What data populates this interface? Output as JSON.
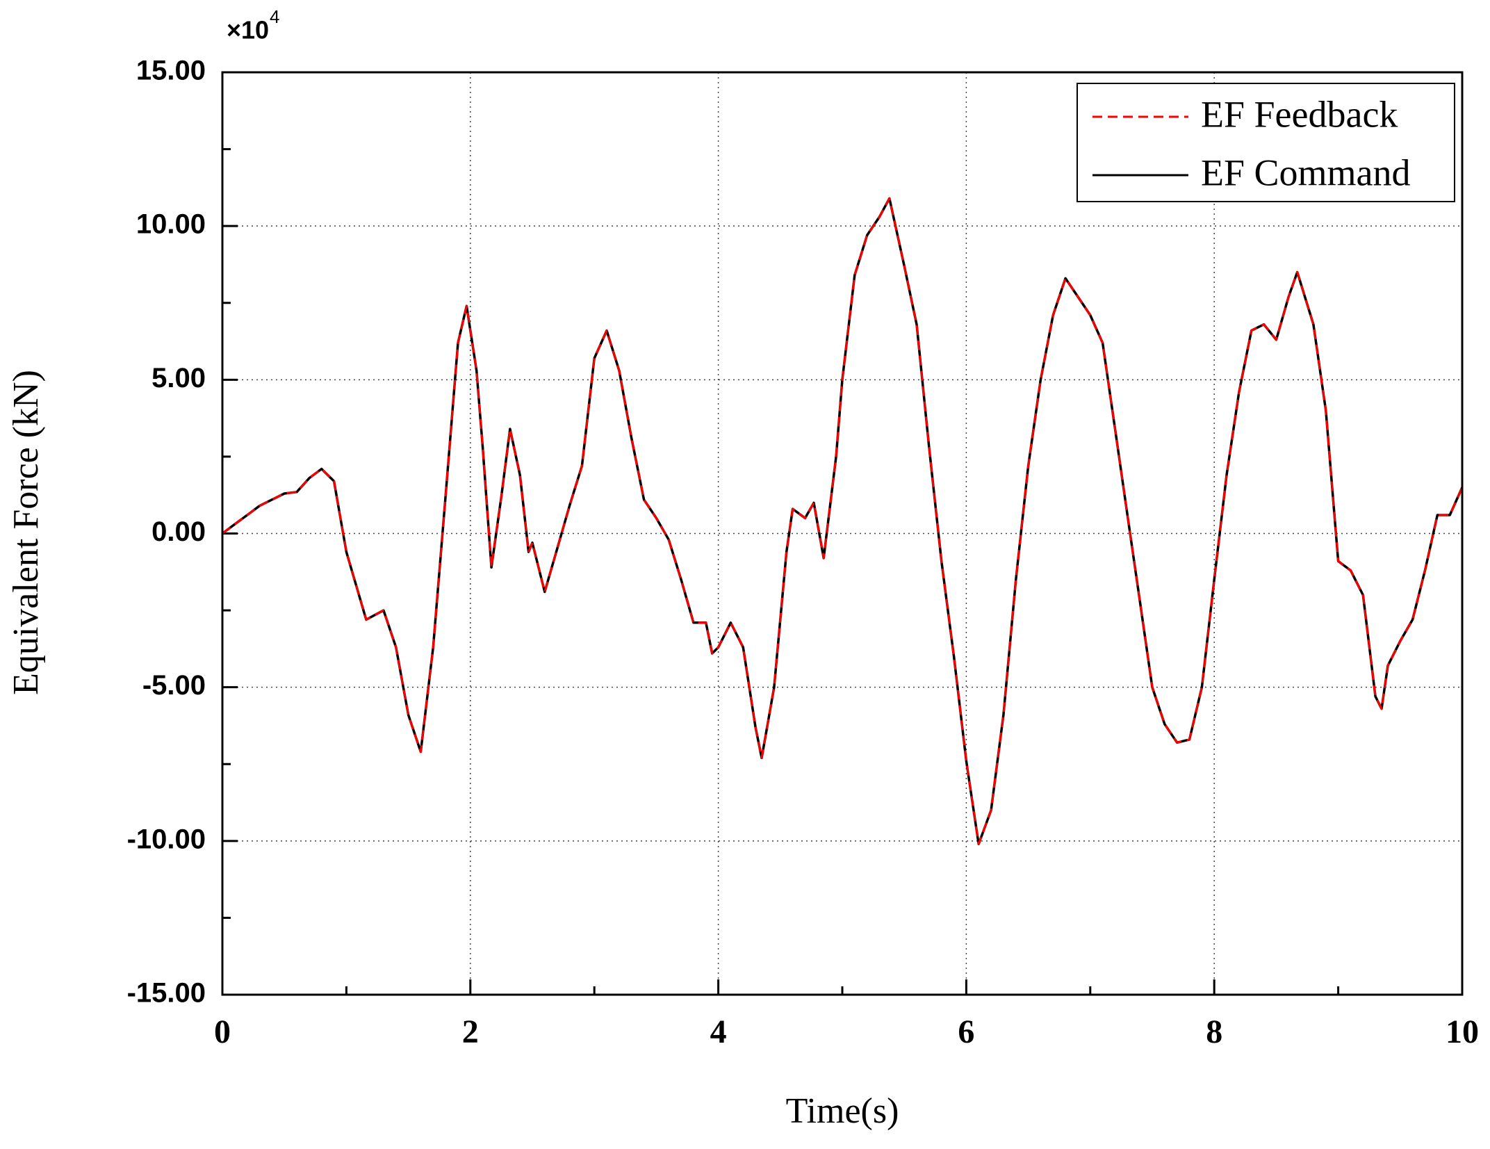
{
  "chart_data": {
    "type": "line",
    "xlabel": "Time(s)",
    "ylabel": "Equivalent Force (kN)",
    "y_scale": {
      "base": "×10",
      "exponent": "4"
    },
    "xlim": [
      0,
      10
    ],
    "xticks": [
      0,
      2,
      4,
      6,
      8,
      10
    ],
    "xminor": [
      1,
      3,
      5,
      7,
      9
    ],
    "ylim": [
      -15,
      15
    ],
    "yticks": [
      {
        "value": -15,
        "label": "-15.00"
      },
      {
        "value": -10,
        "label": "-10.00"
      },
      {
        "value": -5,
        "label": "-5.00"
      },
      {
        "value": 0,
        "label": "0.00"
      },
      {
        "value": 5,
        "label": "5.00"
      },
      {
        "value": 10,
        "label": "10.00"
      },
      {
        "value": 15,
        "label": "15.00"
      }
    ],
    "yminor": [
      -12.5,
      -7.5,
      -2.5,
      2.5,
      7.5,
      12.5
    ],
    "grid": true,
    "legend": "upper right",
    "x": [
      0,
      0.1,
      0.2,
      0.3,
      0.4,
      0.5,
      0.6,
      0.7,
      0.8,
      0.9,
      1.0,
      1.16,
      1.3,
      1.4,
      1.5,
      1.6,
      1.7,
      1.8,
      1.9,
      1.97,
      2.05,
      2.1,
      2.17,
      2.25,
      2.32,
      2.4,
      2.47,
      2.5,
      2.6,
      2.7,
      2.8,
      2.9,
      3.0,
      3.1,
      3.2,
      3.3,
      3.4,
      3.5,
      3.6,
      3.7,
      3.8,
      3.9,
      3.95,
      4.0,
      4.1,
      4.2,
      4.3,
      4.35,
      4.45,
      4.55,
      4.6,
      4.7,
      4.77,
      4.85,
      4.95,
      5.0,
      5.1,
      5.2,
      5.3,
      5.38,
      5.5,
      5.6,
      5.7,
      5.8,
      5.9,
      6.0,
      6.1,
      6.2,
      6.3,
      6.4,
      6.5,
      6.6,
      6.7,
      6.8,
      6.9,
      7.0,
      7.1,
      7.2,
      7.3,
      7.4,
      7.5,
      7.6,
      7.7,
      7.8,
      7.9,
      8.0,
      8.1,
      8.2,
      8.3,
      8.4,
      8.5,
      8.6,
      8.67,
      8.8,
      8.9,
      9.0,
      9.1,
      9.2,
      9.3,
      9.35,
      9.4,
      9.5,
      9.6,
      9.7,
      9.8,
      9.9,
      10
    ],
    "series": [
      {
        "name": "EF Feedback",
        "color": "#ff0000",
        "dash": true,
        "values": [
          0,
          0.3,
          0.6,
          0.9,
          1.1,
          1.3,
          1.35,
          1.8,
          2.1,
          1.7,
          -0.6,
          -2.8,
          -2.5,
          -3.7,
          -5.9,
          -7.1,
          -3.7,
          1.2,
          6.2,
          7.4,
          5.3,
          2.8,
          -1.1,
          1.2,
          3.4,
          1.9,
          -0.6,
          -0.3,
          -1.9,
          -0.5,
          0.9,
          2.2,
          5.7,
          6.6,
          5.3,
          3.1,
          1.1,
          0.5,
          -0.2,
          -1.5,
          -2.9,
          -2.9,
          -3.9,
          -3.7,
          -2.9,
          -3.7,
          -6.3,
          -7.3,
          -5.0,
          -0.6,
          0.8,
          0.5,
          1.0,
          -0.8,
          2.5,
          5.0,
          8.4,
          9.7,
          10.3,
          10.9,
          8.7,
          6.8,
          2.8,
          -0.9,
          -4.0,
          -7.4,
          -10.1,
          -9.0,
          -5.9,
          -1.5,
          2.2,
          5.0,
          7.1,
          8.3,
          7.7,
          7.1,
          6.2,
          3.4,
          0.6,
          -2.2,
          -5.0,
          -6.2,
          -6.8,
          -6.7,
          -5.0,
          -1.5,
          1.9,
          4.6,
          6.6,
          6.8,
          6.3,
          7.7,
          8.5,
          6.8,
          4.0,
          -0.9,
          -1.2,
          -2.0,
          -5.3,
          -5.7,
          -4.3,
          -3.5,
          -2.8,
          -1.2,
          0.6,
          0.6,
          1.5
        ]
      },
      {
        "name": "EF Command",
        "color": "#000000",
        "dash": false,
        "values": [
          0,
          0.3,
          0.6,
          0.9,
          1.1,
          1.3,
          1.35,
          1.8,
          2.1,
          1.7,
          -0.6,
          -2.8,
          -2.5,
          -3.7,
          -5.9,
          -7.1,
          -3.7,
          1.2,
          6.2,
          7.4,
          5.3,
          2.8,
          -1.1,
          1.2,
          3.4,
          1.9,
          -0.6,
          -0.3,
          -1.9,
          -0.5,
          0.9,
          2.2,
          5.7,
          6.6,
          5.3,
          3.1,
          1.1,
          0.5,
          -0.2,
          -1.5,
          -2.9,
          -2.9,
          -3.9,
          -3.7,
          -2.9,
          -3.7,
          -6.3,
          -7.3,
          -5.0,
          -0.6,
          0.8,
          0.5,
          1.0,
          -0.8,
          2.5,
          5.0,
          8.4,
          9.7,
          10.3,
          10.9,
          8.7,
          6.8,
          2.8,
          -0.9,
          -4.0,
          -7.4,
          -10.1,
          -9.0,
          -5.9,
          -1.5,
          2.2,
          5.0,
          7.1,
          8.3,
          7.7,
          7.1,
          6.2,
          3.4,
          0.6,
          -2.2,
          -5.0,
          -6.2,
          -6.8,
          -6.7,
          -5.0,
          -1.5,
          1.9,
          4.6,
          6.6,
          6.8,
          6.3,
          7.7,
          8.5,
          6.8,
          4.0,
          -0.9,
          -1.2,
          -2.0,
          -5.3,
          -5.7,
          -4.3,
          -3.5,
          -2.8,
          -1.2,
          0.6,
          0.6,
          1.5
        ]
      }
    ]
  }
}
